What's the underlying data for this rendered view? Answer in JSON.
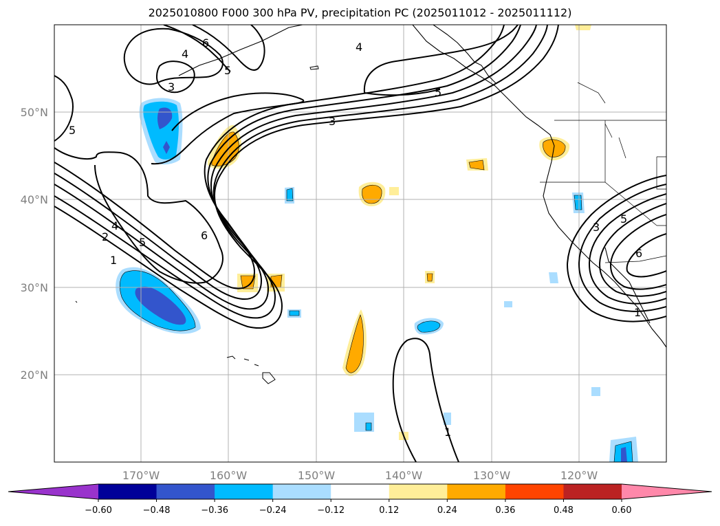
{
  "title": "2025010800 F000 300 hPa PV, precipitation PC (2025011012 - 2025011112)",
  "map": {
    "extent": {
      "lon_min": -180,
      "lon_max": -110,
      "lat_min": 10,
      "lat_max": 60
    },
    "lat_ticks": [
      {
        "value": 50,
        "label": "50°N"
      },
      {
        "value": 40,
        "label": "40°N"
      },
      {
        "value": 30,
        "label": "30°N"
      },
      {
        "value": 20,
        "label": "20°N"
      }
    ],
    "lon_ticks": [
      {
        "value": -170,
        "label": "170°W"
      },
      {
        "value": -160,
        "label": "160°W"
      },
      {
        "value": -150,
        "label": "150°W"
      },
      {
        "value": -140,
        "label": "140°W"
      },
      {
        "value": -130,
        "label": "130°W"
      },
      {
        "value": -120,
        "label": "120°W"
      }
    ],
    "pv_contour_labels": [
      "1",
      "2",
      "3",
      "4",
      "5",
      "6"
    ]
  },
  "colorbar": {
    "levels": [
      "−0.60",
      "−0.48",
      "−0.36",
      "−0.24",
      "−0.12",
      "0.12",
      "0.24",
      "0.36",
      "0.48",
      "0.60"
    ],
    "colors": [
      "#9933cc",
      "#000099",
      "#3355cc",
      "#00bbff",
      "#aaddff",
      "#ffffff",
      "#ffee99",
      "#ffaa00",
      "#ff4400",
      "#bb2222",
      "#ff88aa"
    ]
  },
  "colors": {
    "pv_contour": "#000000",
    "coastline": "#000000",
    "gridline": "#b0b0b0"
  }
}
